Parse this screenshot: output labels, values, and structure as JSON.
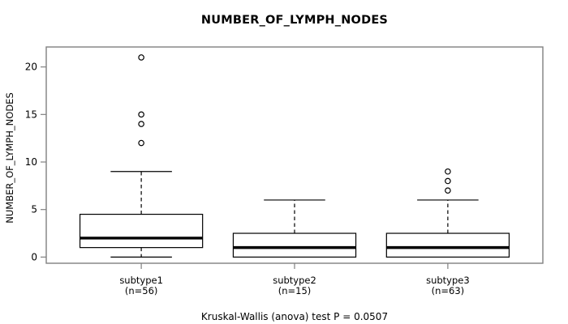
{
  "chart_data": {
    "type": "boxplot",
    "title": "NUMBER_OF_LYMPH_NODES",
    "ylabel": "NUMBER_OF_LYMPH_NODES",
    "caption": "Kruskal-Wallis (anova) test P = 0.0507",
    "yticks": [
      0,
      5,
      10,
      15,
      20
    ],
    "ylim": [
      -0.65,
      22.1
    ],
    "grid": false,
    "legend": "none",
    "background": "#ffffff",
    "frame_color": "#808080",
    "line_color": "#000000",
    "groups": [
      {
        "label": "subtype1",
        "sublabel": "(n=56)",
        "n": 56,
        "whisker_low": 0,
        "q1": 1,
        "median": 2,
        "q3": 4.5,
        "whisker_high": 9,
        "outliers": [
          12,
          14,
          15,
          21
        ]
      },
      {
        "label": "subtype2",
        "sublabel": "(n=15)",
        "n": 15,
        "whisker_low": 0,
        "q1": 0,
        "median": 1,
        "q3": 2.5,
        "whisker_high": 6,
        "outliers": []
      },
      {
        "label": "subtype3",
        "sublabel": "(n=63)",
        "n": 63,
        "whisker_low": 0,
        "q1": 0,
        "median": 1,
        "q3": 2.5,
        "whisker_high": 6,
        "outliers": [
          7,
          8,
          9
        ]
      }
    ]
  }
}
